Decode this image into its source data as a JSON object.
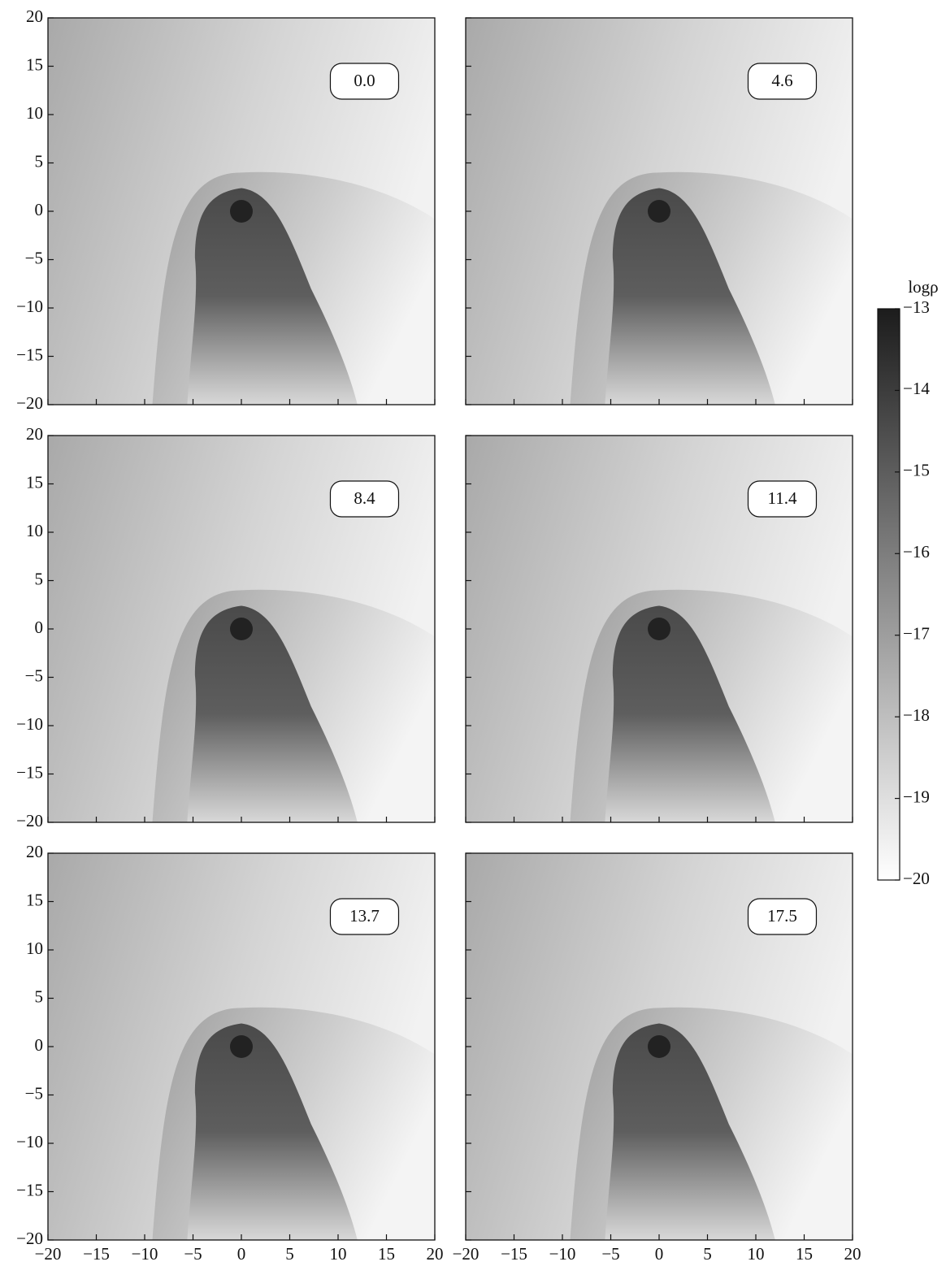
{
  "chart_data": [
    {
      "type": "density-map",
      "label": "0.0",
      "xlim": [
        -20,
        20
      ],
      "ylim": [
        -20,
        20
      ],
      "xticks": [
        -20,
        -15,
        -10,
        -5,
        0,
        5,
        10,
        15,
        20
      ],
      "yticks": [
        {
          "value": -20,
          "label": "−20"
        },
        {
          "value": -15,
          "label": "−15"
        },
        {
          "value": -10,
          "label": "−10"
        },
        {
          "value": -5,
          "label": "−5"
        },
        0,
        5,
        10,
        15,
        20
      ]
    },
    {
      "type": "density-map",
      "label": "4.6",
      "xlim": [
        -20,
        20
      ],
      "ylim": [
        -20,
        20
      ],
      "xticks": [
        -20,
        -15,
        -10,
        -5,
        0,
        5,
        10,
        15,
        20
      ],
      "yticks": [
        -20,
        -15,
        -10,
        -5,
        0,
        5,
        10,
        15,
        20
      ],
      "y_tick_labels": false
    },
    {
      "type": "density-map",
      "label": "8.4",
      "xlim": [
        -20,
        20
      ],
      "ylim": [
        -20,
        20
      ],
      "xticks": [
        -20,
        -15,
        -10,
        -5,
        0,
        5,
        10,
        15,
        20
      ],
      "yticks": [
        {
          "value": -20,
          "label": "−20"
        },
        {
          "value": -15,
          "label": "−15"
        },
        {
          "value": -10,
          "label": "−10"
        },
        {
          "value": -5,
          "label": "−5"
        },
        0,
        5,
        10,
        15,
        20
      ]
    },
    {
      "type": "density-map",
      "label": "11.4",
      "xlim": [
        -20,
        20
      ],
      "ylim": [
        -20,
        20
      ],
      "xticks": [
        -20,
        -15,
        -10,
        -5,
        0,
        5,
        10,
        15,
        20
      ],
      "yticks": [
        -20,
        -15,
        -10,
        -5,
        0,
        5,
        10,
        15,
        20
      ],
      "y_tick_labels": false
    },
    {
      "type": "density-map",
      "label": "13.7",
      "xlim": [
        -20,
        20
      ],
      "ylim": [
        -20,
        20
      ],
      "xticks": [
        {
          "value": -20,
          "label": "−20"
        },
        {
          "value": -15,
          "label": "−15"
        },
        {
          "value": -10,
          "label": "−10"
        },
        {
          "value": -5,
          "label": "−5"
        },
        0,
        5,
        10,
        15,
        20
      ],
      "yticks": [
        {
          "value": -20,
          "label": "−20"
        },
        {
          "value": -15,
          "label": "−15"
        },
        {
          "value": -10,
          "label": "−10"
        },
        {
          "value": -5,
          "label": "−5"
        },
        0,
        5,
        10,
        15,
        20
      ],
      "x_tick_labels": true
    },
    {
      "type": "density-map",
      "label": "17.5",
      "xlim": [
        -20,
        20
      ],
      "ylim": [
        -20,
        20
      ],
      "xticks": [
        {
          "value": -20,
          "label": "−20"
        },
        {
          "value": -15,
          "label": "−15"
        },
        {
          "value": -10,
          "label": "−10"
        },
        {
          "value": -5,
          "label": "−5"
        },
        0,
        5,
        10,
        15,
        20
      ],
      "yticks": [
        -20,
        -15,
        -10,
        -5,
        0,
        5,
        10,
        15,
        20
      ],
      "x_tick_labels": true,
      "y_tick_labels": false
    },
    {
      "type": "colorbar",
      "label": "logρ",
      "lim": [
        -20,
        -13
      ],
      "ticks": [
        {
          "value": -13,
          "label": "−13"
        },
        {
          "value": -14,
          "label": "−14"
        },
        {
          "value": -15,
          "label": "−15"
        },
        {
          "value": -16,
          "label": "−16"
        },
        {
          "value": -17,
          "label": "−17"
        },
        {
          "value": -18,
          "label": "−18"
        },
        {
          "value": -19,
          "label": "−19"
        },
        {
          "value": -20,
          "label": "−20"
        }
      ],
      "colors": [
        "#ffffff",
        "#1c1c1c"
      ]
    }
  ]
}
